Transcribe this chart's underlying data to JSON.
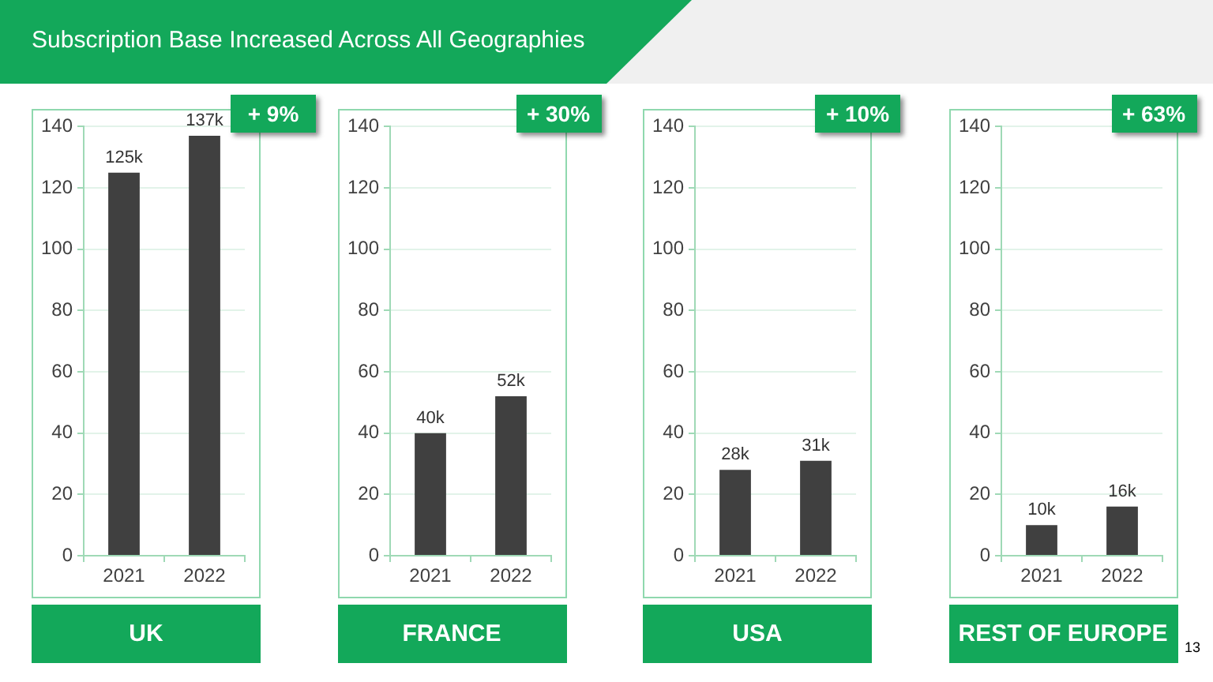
{
  "chart_data": [
    {
      "type": "bar",
      "title": "Subscription Base Increased Across All Geographies",
      "xlabel": "UK",
      "categories": [
        "2021",
        "2022"
      ],
      "values": [
        125,
        137
      ],
      "color": "#404040",
      "value_labels": [
        "125k",
        "137k"
      ],
      "ylim": [
        0,
        140
      ],
      "yticks": [
        0,
        20,
        40,
        60,
        80,
        100,
        120,
        140
      ],
      "grid": "y",
      "annotations": [
        "+ 9%"
      ]
    },
    {
      "type": "bar",
      "xlabel": "FRANCE",
      "categories": [
        "2021",
        "2022"
      ],
      "values": [
        40,
        52
      ],
      "color": "#404040",
      "value_labels": [
        "40k",
        "52k"
      ],
      "ylim": [
        0,
        140
      ],
      "yticks": [
        0,
        20,
        40,
        60,
        80,
        100,
        120,
        140
      ],
      "grid": "y",
      "annotations": [
        "+ 30%"
      ]
    },
    {
      "type": "bar",
      "xlabel": "USA",
      "categories": [
        "2021",
        "2022"
      ],
      "values": [
        28,
        31
      ],
      "color": "#404040",
      "value_labels": [
        "28k",
        "31k"
      ],
      "ylim": [
        0,
        140
      ],
      "yticks": [
        0,
        20,
        40,
        60,
        80,
        100,
        120,
        140
      ],
      "grid": "y",
      "annotations": [
        "+ 10%"
      ]
    },
    {
      "type": "bar",
      "xlabel": "REST OF EUROPE",
      "categories": [
        "2021",
        "2022"
      ],
      "values": [
        10,
        16
      ],
      "color": "#404040",
      "value_labels": [
        "10k",
        "16k"
      ],
      "ylim": [
        0,
        140
      ],
      "yticks": [
        0,
        20,
        40,
        60,
        80,
        100,
        120,
        140
      ],
      "grid": "y",
      "annotations": [
        "+ 63%",
        "13"
      ]
    }
  ]
}
